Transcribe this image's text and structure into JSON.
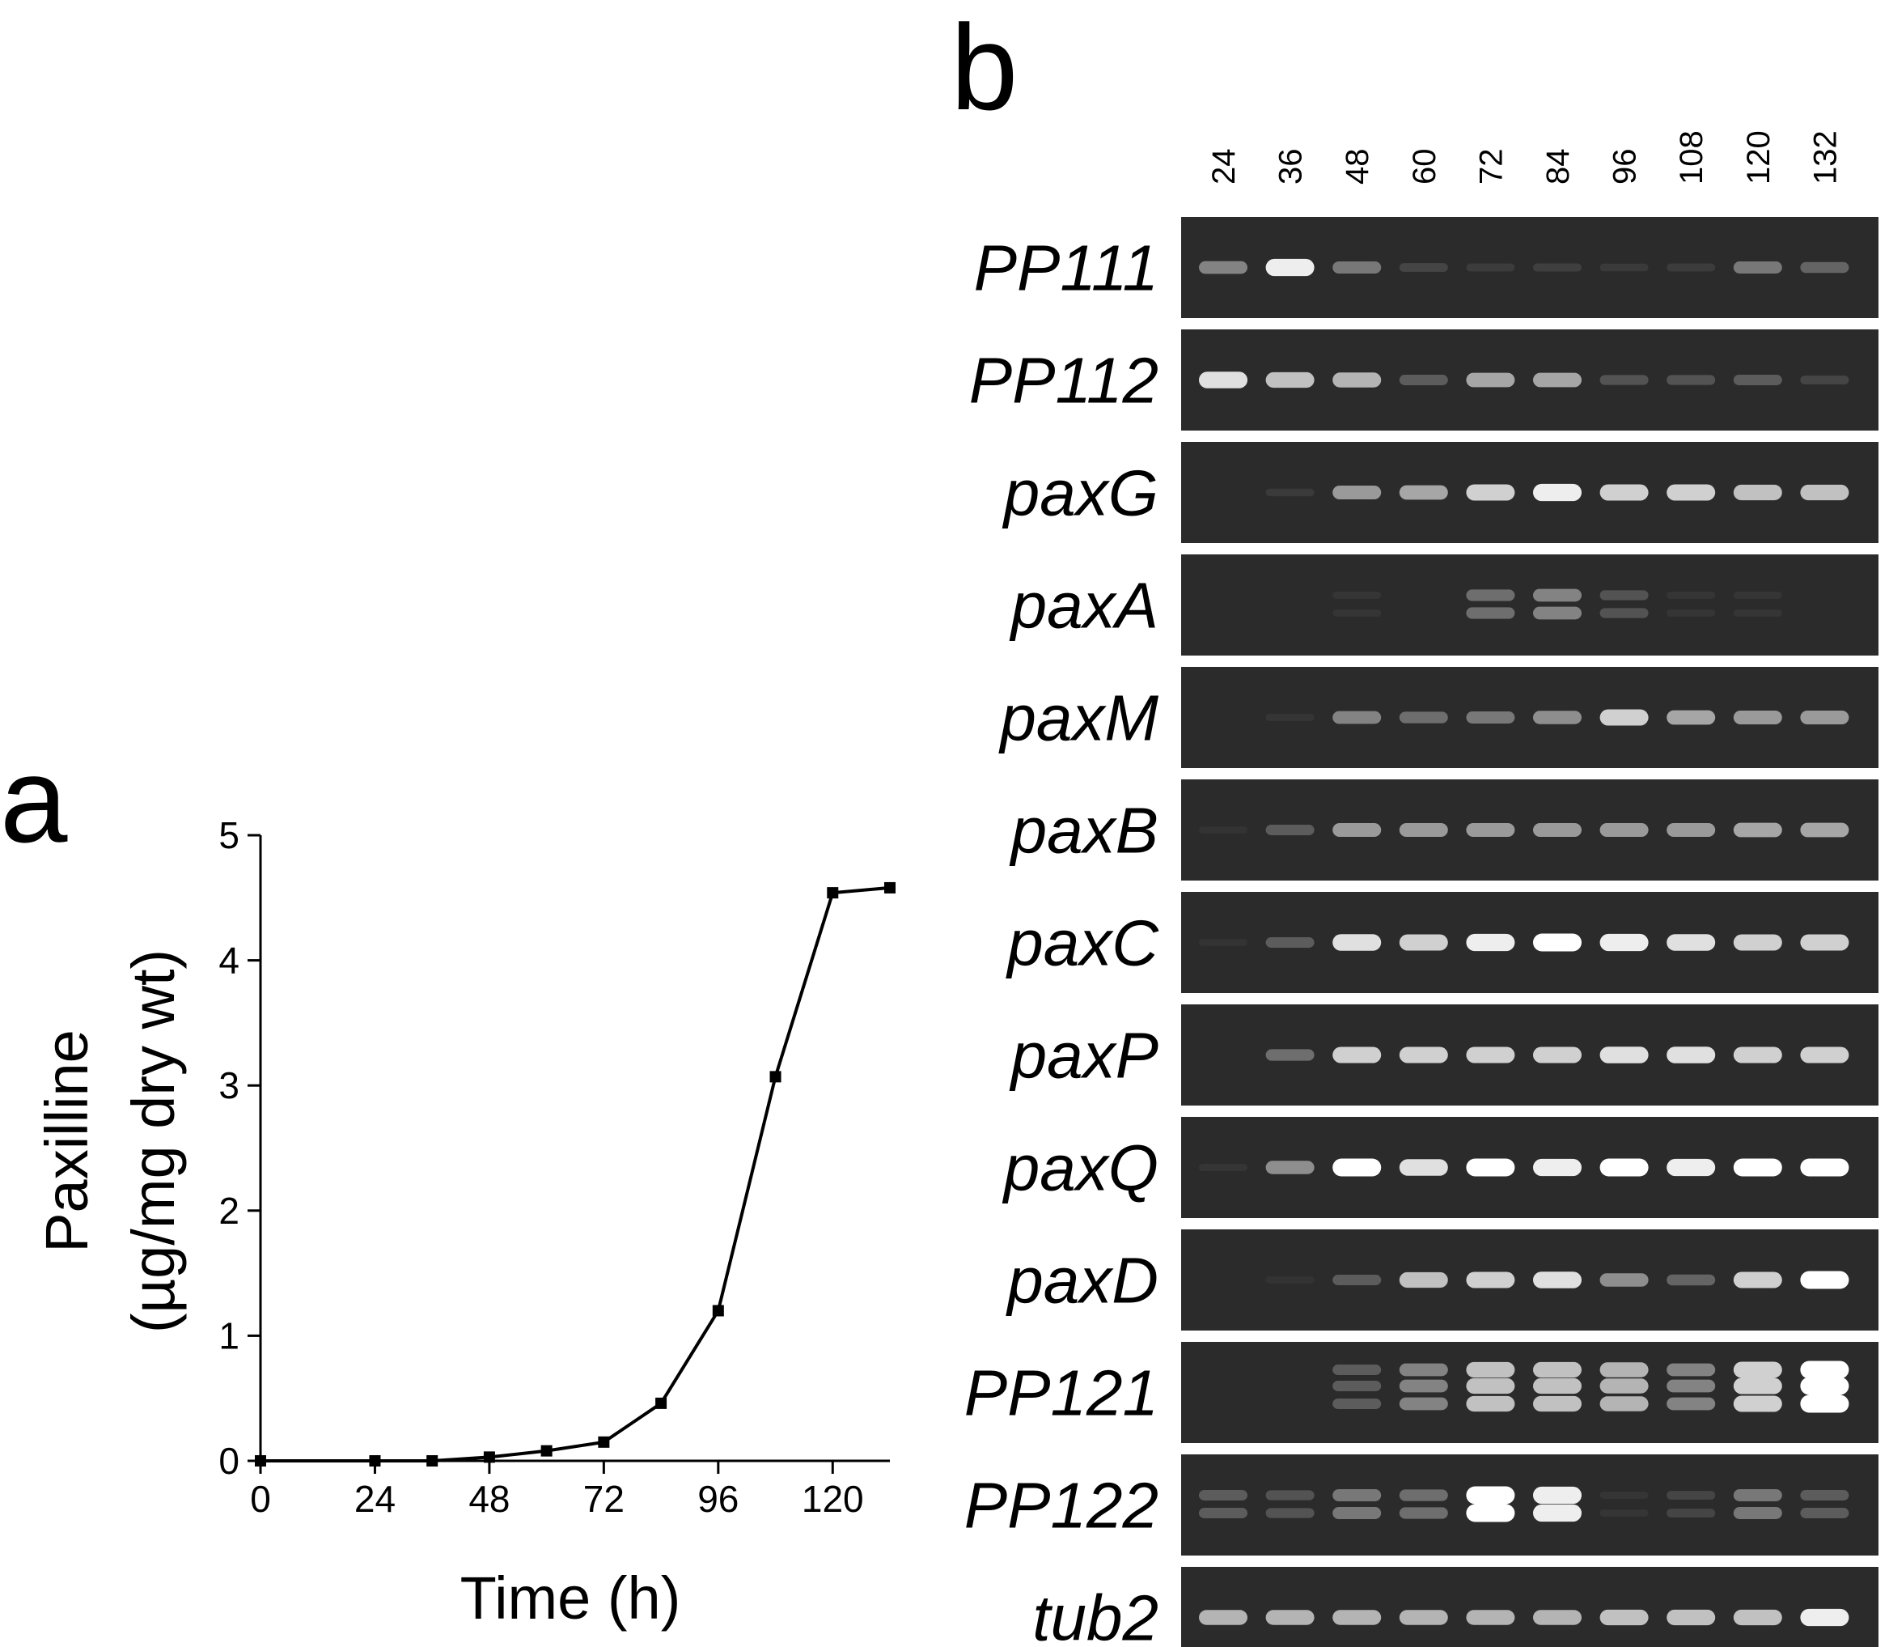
{
  "panels": {
    "a": {
      "letter": "a"
    },
    "b": {
      "letter": "b"
    }
  },
  "chart_data": [
    {
      "panel": "a",
      "type": "line",
      "title": "",
      "xlabel": "Time (h)",
      "ylabel": "Paxilline",
      "ylabel_units": "(µg/mg dry wt)",
      "xlim": [
        0,
        132
      ],
      "ylim": [
        0,
        5
      ],
      "xticks": [
        0,
        24,
        48,
        72,
        96,
        120
      ],
      "yticks": [
        0,
        1,
        2,
        3,
        4,
        5
      ],
      "grid": false,
      "marker": "square",
      "x": [
        0,
        24,
        36,
        48,
        60,
        72,
        84,
        96,
        108,
        120,
        132
      ],
      "series": [
        {
          "values": [
            0,
            0,
            0,
            0.03,
            0.08,
            0.15,
            0.46,
            1.2,
            3.07,
            4.54,
            4.58
          ]
        }
      ]
    },
    {
      "panel": "b",
      "type": "heatmap",
      "description_kind": "RT-PCR gel band intensities",
      "lanes": [
        "24",
        "36",
        "48",
        "60",
        "72",
        "84",
        "96",
        "108",
        "120",
        "132"
      ],
      "rows": [
        {
          "gene": "PP111",
          "intensity": [
            0.55,
            0.95,
            0.5,
            0.2,
            0.12,
            0.15,
            0.1,
            0.12,
            0.5,
            0.4
          ],
          "bands": 1
        },
        {
          "gene": "PP112",
          "intensity": [
            0.9,
            0.8,
            0.75,
            0.35,
            0.7,
            0.7,
            0.3,
            0.3,
            0.35,
            0.2
          ],
          "bands": 1
        },
        {
          "gene": "paxG",
          "intensity": [
            0,
            0.1,
            0.65,
            0.7,
            0.85,
            0.95,
            0.85,
            0.85,
            0.8,
            0.8
          ],
          "bands": 1
        },
        {
          "gene": "paxA",
          "intensity": [
            0,
            0,
            0.05,
            0,
            0.45,
            0.55,
            0.3,
            0.05,
            0.05,
            0
          ],
          "bands": 2
        },
        {
          "gene": "paxM",
          "intensity": [
            0,
            0.05,
            0.55,
            0.45,
            0.5,
            0.6,
            0.85,
            0.7,
            0.65,
            0.65
          ],
          "bands": 1
        },
        {
          "gene": "paxB",
          "intensity": [
            0.03,
            0.35,
            0.65,
            0.65,
            0.65,
            0.65,
            0.65,
            0.65,
            0.7,
            0.7
          ],
          "bands": 1
        },
        {
          "gene": "paxC",
          "intensity": [
            0.03,
            0.35,
            0.9,
            0.85,
            0.95,
            1,
            0.95,
            0.9,
            0.85,
            0.85
          ],
          "bands": 1
        },
        {
          "gene": "paxP",
          "intensity": [
            0,
            0.45,
            0.85,
            0.85,
            0.85,
            0.85,
            0.9,
            0.9,
            0.85,
            0.85
          ],
          "bands": 1
        },
        {
          "gene": "paxQ",
          "intensity": [
            0.05,
            0.6,
            1,
            0.9,
            1,
            0.95,
            1,
            0.95,
            1,
            1
          ],
          "bands": 1
        },
        {
          "gene": "paxD",
          "intensity": [
            0,
            0.03,
            0.35,
            0.8,
            0.85,
            0.9,
            0.6,
            0.4,
            0.85,
            1
          ],
          "bands": 1
        },
        {
          "gene": "PP121",
          "intensity": [
            0,
            0,
            0.35,
            0.55,
            0.8,
            0.8,
            0.75,
            0.55,
            0.85,
            1
          ],
          "bands": 3
        },
        {
          "gene": "PP122",
          "intensity": [
            0.35,
            0.3,
            0.5,
            0.45,
            1,
            0.95,
            0.05,
            0.2,
            0.5,
            0.35
          ],
          "bands": 2
        },
        {
          "gene": "tub2",
          "intensity": [
            0.75,
            0.75,
            0.75,
            0.75,
            0.75,
            0.75,
            0.8,
            0.8,
            0.8,
            0.95
          ],
          "bands": 1
        }
      ]
    }
  ]
}
